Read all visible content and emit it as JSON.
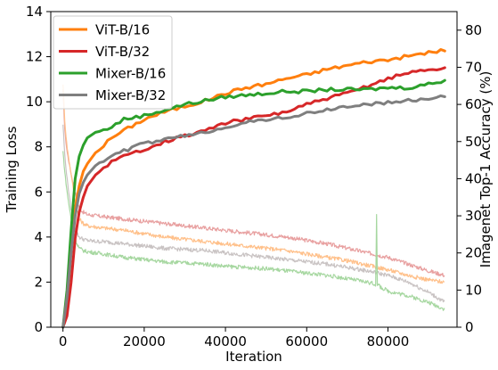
{
  "chart_data": {
    "type": "line",
    "xlabel": "Iteration",
    "ylabel_left": "Training Loss",
    "ylabel_right": "Imagenet Top-1 Accuracy (%)",
    "xlim": [
      -3000,
      97000
    ],
    "ylim_left": [
      0,
      14
    ],
    "ylim_right": [
      0,
      85
    ],
    "x_ticks": [
      0,
      20000,
      40000,
      60000,
      80000
    ],
    "y_ticks_left": [
      0,
      2,
      4,
      6,
      8,
      10,
      12,
      14
    ],
    "y_ticks_right": [
      0,
      10,
      20,
      30,
      40,
      50,
      60,
      70,
      80
    ],
    "grid": false,
    "legend_position": "top-left",
    "accuracy_series": [
      {
        "name": "ViT-B/16",
        "color": "#ff7f0e",
        "axis": "right",
        "x": [
          0,
          1000,
          2000,
          3000,
          4000,
          5000,
          6000,
          8000,
          10000,
          12000,
          15000,
          20000,
          25000,
          30000,
          35000,
          40000,
          45000,
          50000,
          55000,
          60000,
          65000,
          70000,
          75000,
          80000,
          85000,
          90000,
          94000
        ],
        "y": [
          0,
          7,
          20,
          32,
          38,
          42,
          44,
          47,
          49,
          51,
          53,
          56,
          58,
          59.5,
          61,
          63,
          64.5,
          65.5,
          67,
          68,
          69.5,
          70.5,
          71.5,
          72,
          73,
          74,
          74.5
        ]
      },
      {
        "name": "ViT-B/32",
        "color": "#d62728",
        "axis": "right",
        "x": [
          0,
          1000,
          2000,
          3000,
          4000,
          5000,
          6000,
          8000,
          10000,
          12000,
          15000,
          20000,
          25000,
          30000,
          35000,
          40000,
          45000,
          50000,
          55000,
          60000,
          65000,
          70000,
          75000,
          80000,
          85000,
          90000,
          94000
        ],
        "y": [
          0,
          3,
          12,
          24,
          31,
          35,
          38,
          41,
          43,
          44.5,
          46,
          48,
          50,
          51.5,
          53,
          55,
          56,
          57,
          58,
          60,
          61.5,
          63,
          65,
          67,
          68.5,
          69.5,
          69.5
        ]
      },
      {
        "name": "Mixer-B/16",
        "color": "#2ca02c",
        "axis": "right",
        "x": [
          0,
          1000,
          2000,
          3000,
          4000,
          5000,
          6000,
          8000,
          10000,
          12000,
          15000,
          20000,
          25000,
          30000,
          35000,
          40000,
          45000,
          50000,
          55000,
          60000,
          65000,
          70000,
          75000,
          80000,
          85000,
          90000,
          94000
        ],
        "y": [
          0,
          10,
          26,
          40,
          46,
          49,
          51,
          52.5,
          53,
          54,
          56,
          57,
          58.5,
          60,
          61,
          62,
          62.5,
          63,
          63.5,
          63.5,
          64,
          64,
          64,
          64.5,
          64.5,
          65.5,
          66.5
        ]
      },
      {
        "name": "Mixer-B/32",
        "color": "#7f7f7f",
        "axis": "right",
        "x": [
          0,
          1000,
          2000,
          3000,
          4000,
          5000,
          6000,
          8000,
          10000,
          12000,
          15000,
          20000,
          25000,
          30000,
          35000,
          40000,
          45000,
          50000,
          55000,
          60000,
          65000,
          70000,
          75000,
          80000,
          85000,
          90000,
          94000
        ],
        "y": [
          0,
          8,
          20,
          30,
          36,
          39,
          41,
          43.5,
          45,
          46,
          47.5,
          49.5,
          50.5,
          51.5,
          52.5,
          54,
          55,
          56,
          56.5,
          57.5,
          58.5,
          59.5,
          60,
          60.5,
          61,
          61.5,
          62.5
        ]
      }
    ],
    "loss_series": [
      {
        "color": "#e8a0a0",
        "axis": "left",
        "x": [
          0,
          500,
          1000,
          2000,
          3000,
          4000,
          5000,
          6000,
          8000,
          10000,
          15000,
          20000,
          25000,
          30000,
          35000,
          40000,
          45000,
          50000,
          55000,
          60000,
          65000,
          70000,
          75000,
          80000,
          85000,
          90000,
          94000
        ],
        "y": [
          10.5,
          8.6,
          7.8,
          6.8,
          6.0,
          5.3,
          5.1,
          5.0,
          4.95,
          4.9,
          4.8,
          4.7,
          4.6,
          4.5,
          4.4,
          4.3,
          4.2,
          4.1,
          4.0,
          3.85,
          3.7,
          3.5,
          3.3,
          3.1,
          2.8,
          2.5,
          2.3
        ]
      },
      {
        "color": "#ffc08a",
        "axis": "left",
        "x": [
          0,
          500,
          1000,
          2000,
          3000,
          4000,
          5000,
          6000,
          8000,
          10000,
          15000,
          20000,
          25000,
          30000,
          35000,
          40000,
          45000,
          50000,
          55000,
          60000,
          65000,
          70000,
          75000,
          80000,
          85000,
          90000,
          94000
        ],
        "y": [
          10.8,
          9.0,
          8.0,
          6.8,
          5.6,
          4.8,
          4.6,
          4.5,
          4.45,
          4.4,
          4.3,
          4.15,
          4.0,
          3.9,
          3.8,
          3.7,
          3.6,
          3.5,
          3.4,
          3.25,
          3.1,
          2.95,
          2.75,
          2.55,
          2.3,
          2.1,
          2.0
        ]
      },
      {
        "color": "#c9c3c3",
        "axis": "left",
        "x": [
          0,
          500,
          1000,
          2000,
          3000,
          4000,
          5000,
          6000,
          8000,
          10000,
          15000,
          20000,
          25000,
          30000,
          35000,
          40000,
          45000,
          50000,
          55000,
          60000,
          65000,
          70000,
          75000,
          80000,
          85000,
          90000,
          94000
        ],
        "y": [
          9.0,
          7.5,
          6.6,
          5.2,
          4.3,
          4.0,
          3.9,
          3.85,
          3.8,
          3.8,
          3.7,
          3.6,
          3.5,
          3.45,
          3.4,
          3.3,
          3.2,
          3.1,
          3.0,
          2.9,
          2.8,
          2.65,
          2.5,
          2.3,
          2.0,
          1.55,
          1.1
        ]
      },
      {
        "color": "#a6d7a0",
        "axis": "left",
        "x": [
          0,
          500,
          1000,
          2000,
          3000,
          4000,
          5000,
          6000,
          8000,
          10000,
          15000,
          20000,
          25000,
          30000,
          35000,
          40000,
          45000,
          50000,
          55000,
          60000,
          65000,
          70000,
          75000,
          77000,
          77200,
          77400,
          78000,
          80000,
          85000,
          90000,
          94000
        ],
        "y": [
          7.8,
          6.8,
          6.0,
          4.8,
          3.9,
          3.5,
          3.4,
          3.35,
          3.3,
          3.25,
          3.1,
          3.0,
          2.9,
          2.85,
          2.8,
          2.7,
          2.65,
          2.6,
          2.5,
          2.4,
          2.3,
          2.15,
          2.0,
          1.9,
          5.0,
          1.9,
          1.8,
          1.6,
          1.4,
          1.1,
          0.8
        ]
      }
    ]
  }
}
